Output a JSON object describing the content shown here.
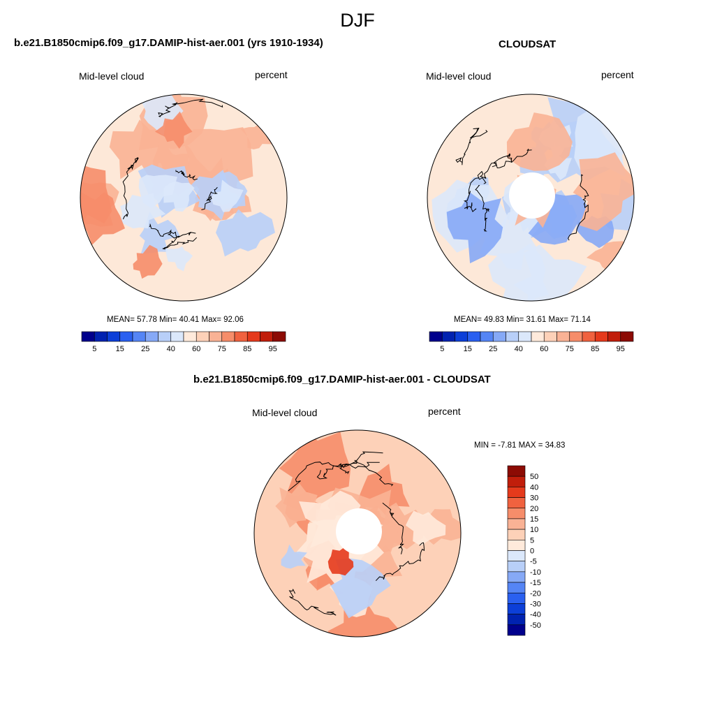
{
  "main_title": "DJF",
  "top_left": {
    "title": "b.e21.B1850cmip6.f09_g17.DAMIP-hist-aer.001 (yrs 1910-1934)",
    "left_label": "Mid-level cloud",
    "right_label": "percent",
    "stats": "MEAN=  57.78  Min=  40.41  Max=  92.06"
  },
  "top_right": {
    "title": "CLOUDSAT",
    "left_label": "Mid-level cloud",
    "right_label": "percent",
    "stats": "MEAN=  49.83  Min=  31.61  Max=  71.14"
  },
  "bottom": {
    "title": "b.e21.B1850cmip6.f09_g17.DAMIP-hist-aer.001 - CLOUDSAT",
    "left_label": "Mid-level cloud",
    "right_label": "percent",
    "stats": "MIN =  -7.81 MAX =  34.83"
  },
  "colorbar_top": {
    "colors": [
      "#00008c",
      "#0022b0",
      "#0c3fd8",
      "#2a60f0",
      "#5585f5",
      "#86a9f6",
      "#b8cff8",
      "#dbe8fb",
      "#ffeadb",
      "#fdd1b8",
      "#f9b295",
      "#f68d6a",
      "#f0623f",
      "#e53a1c",
      "#c11e0b",
      "#8c0b04"
    ],
    "tick_labels": [
      "5",
      "15",
      "25",
      "40",
      "60",
      "75",
      "85",
      "95"
    ]
  },
  "colorbar_diff": {
    "colors": [
      "#00008c",
      "#0022b0",
      "#0c3fd8",
      "#2a60f0",
      "#5585f5",
      "#86a9f6",
      "#b8cff8",
      "#dbe8fb",
      "#ffeadb",
      "#fdd1b8",
      "#f9b295",
      "#f68d6a",
      "#f0623f",
      "#e53a1c",
      "#c11e0b",
      "#8c0b04"
    ],
    "tick_labels": [
      "-50",
      "-40",
      "-30",
      "-20",
      "-15",
      "-10",
      "-5",
      "0",
      "5",
      "10",
      "15",
      "20",
      "30",
      "40",
      "50"
    ]
  },
  "maps": {
    "left": {
      "base_color": "#fde8d8",
      "patches": [
        [
          "#f9b295",
          0.55
        ],
        [
          "#b8cff8",
          0.3
        ],
        [
          "#dbe8fb",
          0.35
        ],
        [
          "#f68d6a",
          0.2
        ]
      ],
      "polar_hole": false
    },
    "right": {
      "base_color": "#fde8d8",
      "patches": [
        [
          "#b8cff8",
          0.55
        ],
        [
          "#dbe8fb",
          0.45
        ],
        [
          "#86a9f6",
          0.15
        ],
        [
          "#f9b295",
          0.2
        ]
      ],
      "polar_hole": true
    },
    "diff": {
      "base_color": "#fdd1b8",
      "patches": [
        [
          "#f68d6a",
          0.55
        ],
        [
          "#f9b295",
          0.5
        ],
        [
          "#ffeadb",
          0.35
        ],
        [
          "#b8cff8",
          0.15
        ],
        [
          "#e53a1c",
          0.08
        ]
      ],
      "polar_hole": true
    }
  }
}
